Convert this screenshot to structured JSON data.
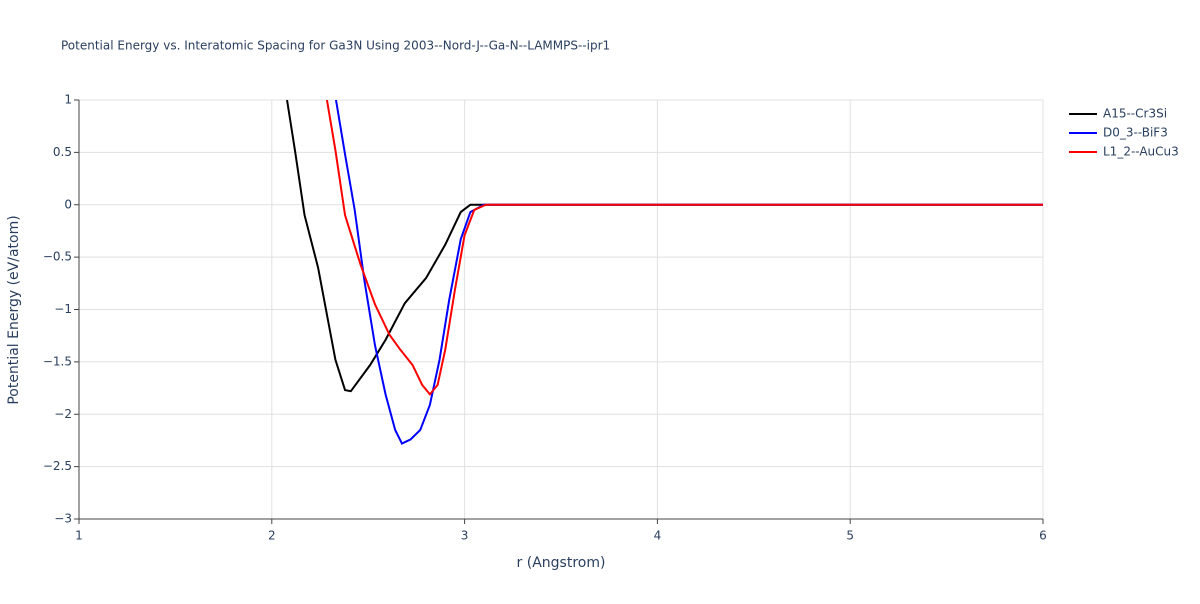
{
  "chart_data": {
    "type": "line",
    "title": "Potential Energy vs. Interatomic Spacing for Ga3N Using 2003--Nord-J--Ga-N--LAMMPS--ipr1",
    "x_label": "r (Angstrom)",
    "y_label": "Potential Energy (eV/atom)",
    "xlim": [
      1,
      6
    ],
    "xticks": [
      1,
      2,
      3,
      4,
      5,
      6
    ],
    "ylim": [
      -3,
      1
    ],
    "yticks": [
      {
        "value": -3,
        "label": "−3"
      },
      {
        "value": -2.5,
        "label": "−2.5"
      },
      {
        "value": -2,
        "label": "−2"
      },
      {
        "value": -1.5,
        "label": "−1.5"
      },
      {
        "value": -1,
        "label": "−1"
      },
      {
        "value": -0.5,
        "label": "−0.5"
      },
      0,
      0.5,
      1
    ],
    "grid": true,
    "legend": "right",
    "series": [
      {
        "name": "A15--Cr3Si",
        "color": "#000000",
        "x": [
          2.079,
          2.12,
          2.17,
          2.24,
          2.33,
          2.38,
          2.41,
          2.51,
          2.59,
          2.69,
          2.8,
          2.9,
          2.98,
          3.03,
          3.08,
          6
        ],
        "values": [
          1,
          0.52,
          -0.1,
          -0.6,
          -1.48,
          -1.77,
          -1.78,
          -1.53,
          -1.29,
          -0.94,
          -0.7,
          -0.38,
          -0.07,
          0,
          0,
          0
        ]
      },
      {
        "name": "D0_3--BiF3",
        "color": "#0000ff",
        "x": [
          2.333,
          2.38,
          2.43,
          2.48,
          2.535,
          2.59,
          2.64,
          2.675,
          2.72,
          2.77,
          2.82,
          2.87,
          2.92,
          2.98,
          3.03,
          3.1,
          6
        ],
        "values": [
          1,
          0.48,
          -0.05,
          -0.72,
          -1.34,
          -1.81,
          -2.15,
          -2.28,
          -2.24,
          -2.15,
          -1.91,
          -1.48,
          -0.91,
          -0.33,
          -0.07,
          0,
          0
        ]
      },
      {
        "name": "L1_2--AuCu3",
        "color": "#ff0000",
        "x": [
          2.286,
          2.33,
          2.38,
          2.46,
          2.535,
          2.61,
          2.665,
          2.73,
          2.78,
          2.82,
          2.86,
          2.9,
          2.95,
          3.0,
          3.05,
          3.11,
          6
        ],
        "values": [
          1,
          0.52,
          -0.1,
          -0.57,
          -0.95,
          -1.24,
          -1.38,
          -1.53,
          -1.72,
          -1.81,
          -1.72,
          -1.38,
          -0.81,
          -0.29,
          -0.05,
          0,
          0
        ]
      }
    ]
  }
}
